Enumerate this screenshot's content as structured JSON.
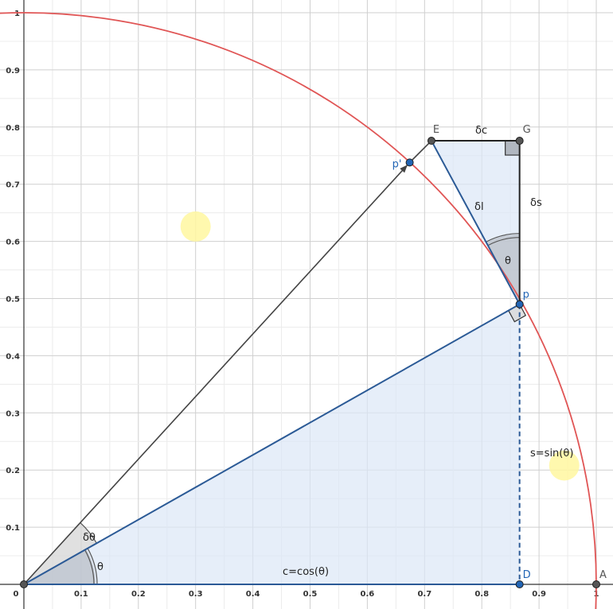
{
  "axes": {
    "x_ticks": [
      "0",
      "0.1",
      "0.2",
      "0.3",
      "0.4",
      "0.5",
      "0.6",
      "0.7",
      "0.8",
      "0.9",
      "1"
    ],
    "x_tick_values": [
      0,
      0.1,
      0.2,
      0.3,
      0.4,
      0.5,
      0.6,
      0.7,
      0.8,
      0.9,
      1
    ],
    "y_ticks": [
      "0.1",
      "0.2",
      "0.3",
      "0.4",
      "0.5",
      "0.6",
      "0.7",
      "0.8",
      "0.9",
      "1"
    ],
    "y_tick_values": [
      0.1,
      0.2,
      0.3,
      0.4,
      0.5,
      0.6,
      0.7,
      0.8,
      0.9,
      1
    ],
    "xlim": [
      0,
      1.03
    ],
    "ylim": [
      0,
      1.02
    ],
    "grid": true
  },
  "circle": {
    "center": [
      0,
      0
    ],
    "radius": 1,
    "color": "#e05555"
  },
  "points": {
    "O": {
      "x": 0,
      "y": 0
    },
    "A": {
      "x": 1,
      "y": 0,
      "label": "A"
    },
    "D": {
      "x": 0.866,
      "y": 0,
      "label": "D"
    },
    "p": {
      "x": 0.866,
      "y": 0.49,
      "label": "p"
    },
    "p_prime": {
      "x": 0.674,
      "y": 0.738,
      "label": "p'"
    },
    "E": {
      "x": 0.712,
      "y": 0.776,
      "label": "E"
    },
    "G": {
      "x": 0.866,
      "y": 0.776,
      "label": "G"
    }
  },
  "labels": {
    "theta_origin": "θ",
    "delta_theta": "δθ",
    "theta_p": "θ",
    "cos": "c=cos(θ)",
    "sin": "s=sin(θ)",
    "delta_c": "δc",
    "delta_s": "δs",
    "delta_l": "δl"
  },
  "colors": {
    "triangle_fill": "#dbe7f6",
    "triangle_stroke": "#2b5a96",
    "point_blue": "#2265b5",
    "point_gray": "#555555",
    "vector": "#444444",
    "highlight": "#fff7a0"
  }
}
